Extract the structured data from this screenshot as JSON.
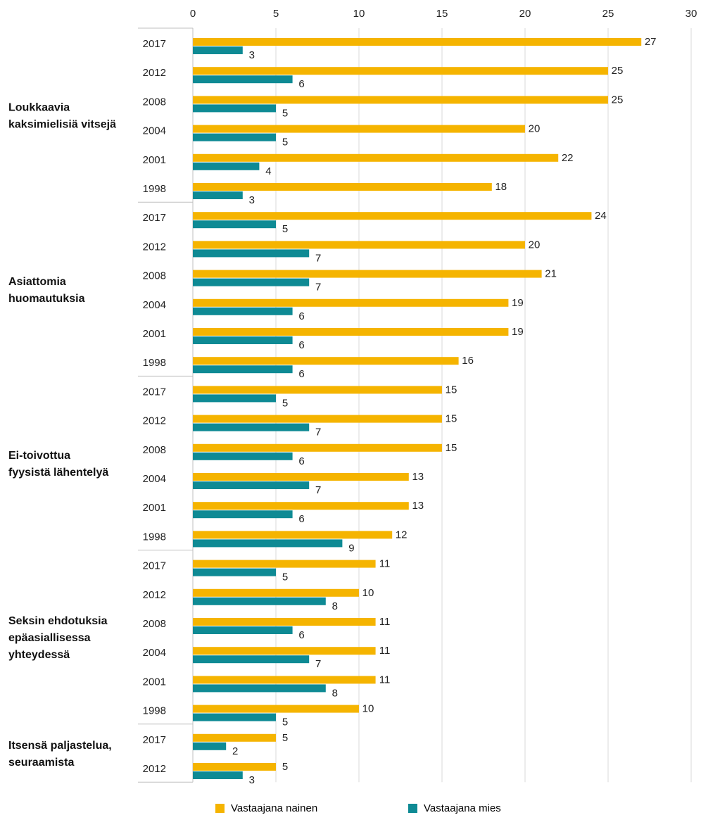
{
  "colors": {
    "nainen": "#F5B400",
    "mies": "#0E8A94",
    "grid": "#d9d9d9"
  },
  "chart_data": {
    "type": "bar",
    "orientation": "horizontal",
    "xlim": [
      0,
      30
    ],
    "x_ticks": [
      "0",
      "5",
      "10",
      "15",
      "20",
      "25",
      "30"
    ],
    "legend_position": "bottom",
    "grid": true,
    "series": [
      {
        "name": "Vastaajana nainen",
        "key": "nainen"
      },
      {
        "name": "Vastaajana mies",
        "key": "mies"
      }
    ],
    "groups": [
      {
        "label_lines": [
          "Loukkaavia",
          "kaksimielisiä vitsejä"
        ],
        "rows": [
          {
            "year": "2017",
            "nainen": 27,
            "mies": 3
          },
          {
            "year": "2012",
            "nainen": 25,
            "mies": 6
          },
          {
            "year": "2008",
            "nainen": 25,
            "mies": 5
          },
          {
            "year": "2004",
            "nainen": 20,
            "mies": 5
          },
          {
            "year": "2001",
            "nainen": 22,
            "mies": 4
          },
          {
            "year": "1998",
            "nainen": 18,
            "mies": 3
          }
        ]
      },
      {
        "label_lines": [
          "Asiattomia",
          "huomautuksia"
        ],
        "rows": [
          {
            "year": "2017",
            "nainen": 24,
            "mies": 5
          },
          {
            "year": "2012",
            "nainen": 20,
            "mies": 7
          },
          {
            "year": "2008",
            "nainen": 21,
            "mies": 7
          },
          {
            "year": "2004",
            "nainen": 19,
            "mies": 6
          },
          {
            "year": "2001",
            "nainen": 19,
            "mies": 6
          },
          {
            "year": "1998",
            "nainen": 16,
            "mies": 6
          }
        ]
      },
      {
        "label_lines": [
          "Ei-toivottua",
          "fyysistä lähentelyä"
        ],
        "rows": [
          {
            "year": "2017",
            "nainen": 15,
            "mies": 5
          },
          {
            "year": "2012",
            "nainen": 15,
            "mies": 7
          },
          {
            "year": "2008",
            "nainen": 15,
            "mies": 6
          },
          {
            "year": "2004",
            "nainen": 13,
            "mies": 7
          },
          {
            "year": "2001",
            "nainen": 13,
            "mies": 6
          },
          {
            "year": "1998",
            "nainen": 12,
            "mies": 9
          }
        ]
      },
      {
        "label_lines": [
          "Seksin ehdotuksia",
          "epäasiallisessa",
          "yhteydessä"
        ],
        "rows": [
          {
            "year": "2017",
            "nainen": 11,
            "mies": 5
          },
          {
            "year": "2012",
            "nainen": 10,
            "mies": 8
          },
          {
            "year": "2008",
            "nainen": 11,
            "mies": 6
          },
          {
            "year": "2004",
            "nainen": 11,
            "mies": 7
          },
          {
            "year": "2001",
            "nainen": 11,
            "mies": 8
          },
          {
            "year": "1998",
            "nainen": 10,
            "mies": 5
          }
        ]
      },
      {
        "label_lines": [
          "Itsensä paljastelua,",
          "seuraamista"
        ],
        "rows": [
          {
            "year": "2017",
            "nainen": 5,
            "mies": 2
          },
          {
            "year": "2012",
            "nainen": 5,
            "mies": 3
          }
        ]
      }
    ]
  }
}
